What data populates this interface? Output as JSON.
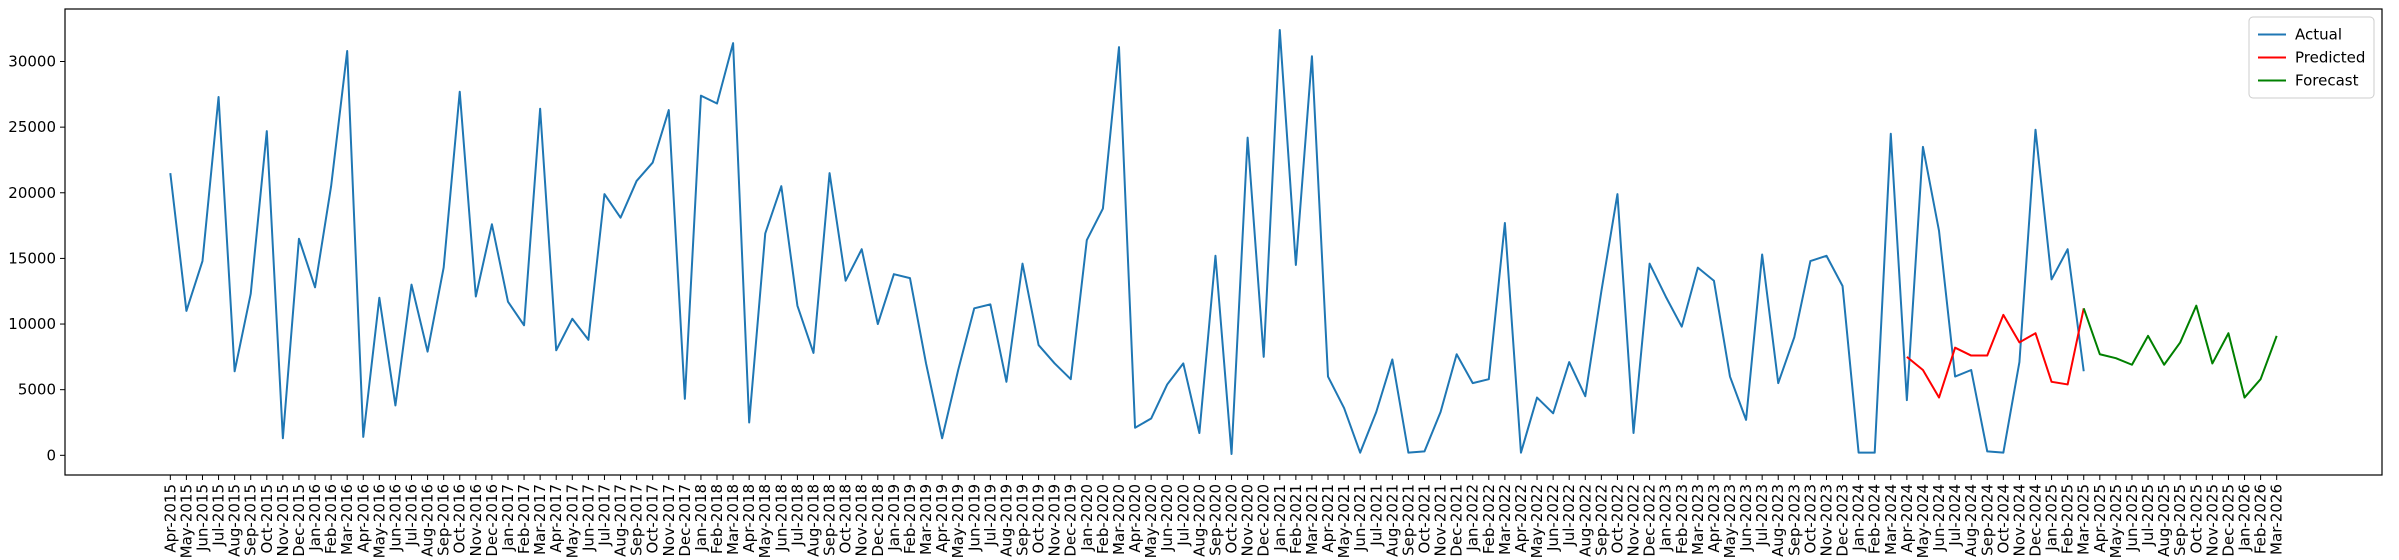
{
  "chart_data": {
    "type": "line",
    "categories": [
      "Apr-2015",
      "May-2015",
      "Jun-2015",
      "Jul-2015",
      "Aug-2015",
      "Sep-2015",
      "Oct-2015",
      "Nov-2015",
      "Dec-2015",
      "Jan-2016",
      "Feb-2016",
      "Mar-2016",
      "Apr-2016",
      "May-2016",
      "Jun-2016",
      "Jul-2016",
      "Aug-2016",
      "Sep-2016",
      "Oct-2016",
      "Nov-2016",
      "Dec-2016",
      "Jan-2017",
      "Feb-2017",
      "Mar-2017",
      "Apr-2017",
      "May-2017",
      "Jun-2017",
      "Jul-2017",
      "Aug-2017",
      "Sep-2017",
      "Oct-2017",
      "Nov-2017",
      "Dec-2017",
      "Jan-2018",
      "Feb-2018",
      "Mar-2018",
      "Apr-2018",
      "May-2018",
      "Jun-2018",
      "Jul-2018",
      "Aug-2018",
      "Sep-2018",
      "Oct-2018",
      "Nov-2018",
      "Dec-2018",
      "Jan-2019",
      "Feb-2019",
      "Mar-2019",
      "Apr-2019",
      "May-2019",
      "Jun-2019",
      "Jul-2019",
      "Aug-2019",
      "Sep-2019",
      "Oct-2019",
      "Nov-2019",
      "Dec-2019",
      "Jan-2020",
      "Feb-2020",
      "Mar-2020",
      "Apr-2020",
      "May-2020",
      "Jun-2020",
      "Jul-2020",
      "Aug-2020",
      "Sep-2020",
      "Oct-2020",
      "Nov-2020",
      "Dec-2020",
      "Jan-2021",
      "Feb-2021",
      "Mar-2021",
      "Apr-2021",
      "May-2021",
      "Jun-2021",
      "Jul-2021",
      "Aug-2021",
      "Sep-2021",
      "Oct-2021",
      "Nov-2021",
      "Dec-2021",
      "Jan-2022",
      "Feb-2022",
      "Mar-2022",
      "Apr-2022",
      "May-2022",
      "Jun-2022",
      "Jul-2022",
      "Aug-2022",
      "Sep-2022",
      "Oct-2022",
      "Nov-2022",
      "Dec-2022",
      "Jan-2023",
      "Feb-2023",
      "Mar-2023",
      "Apr-2023",
      "May-2023",
      "Jun-2023",
      "Jul-2023",
      "Aug-2023",
      "Sep-2023",
      "Oct-2023",
      "Nov-2023",
      "Dec-2023",
      "Jan-2024",
      "Feb-2024",
      "Mar-2024",
      "Apr-2024",
      "May-2024",
      "Jun-2024",
      "Jul-2024",
      "Aug-2024",
      "Sep-2024",
      "Oct-2024",
      "Nov-2024",
      "Dec-2024",
      "Jan-2025",
      "Feb-2025",
      "Mar-2025",
      "Apr-2025",
      "May-2025",
      "Jun-2025",
      "Jul-2025",
      "Aug-2025",
      "Sep-2025",
      "Oct-2025",
      "Nov-2025",
      "Dec-2025",
      "Jan-2026",
      "Feb-2026",
      "Mar-2026"
    ],
    "series": [
      {
        "name": "Actual",
        "color": "#1f77b4",
        "values": [
          21500,
          11000,
          14800,
          27300,
          6400,
          12300,
          24700,
          1300,
          16500,
          12800,
          20500,
          30800,
          1400,
          12000,
          3800,
          13000,
          7900,
          14300,
          27700,
          12100,
          17600,
          11700,
          9900,
          26400,
          8000,
          10400,
          8800,
          19900,
          18100,
          20900,
          22300,
          26300,
          4300,
          27400,
          26800,
          31400,
          2500,
          16900,
          20500,
          11400,
          7800,
          21500,
          13300,
          15700,
          10000,
          13800,
          13500,
          7000,
          1300,
          6500,
          11200,
          11500,
          5600,
          14600,
          8400,
          7000,
          5800,
          16400,
          18800,
          31100,
          2100,
          2800,
          5400,
          7000,
          1700,
          15200,
          100,
          24200,
          7500,
          32400,
          14500,
          30400,
          6000,
          3600,
          200,
          3300,
          7300,
          200,
          300,
          3300,
          7700,
          5500,
          5800,
          17700,
          200,
          4400,
          3200,
          7100,
          4500,
          12500,
          19900,
          1700,
          14600,
          12100,
          9800,
          14300,
          13300,
          6000,
          2700,
          15300,
          5500,
          9000,
          14800,
          15200,
          12900,
          200,
          200,
          24500,
          4200,
          23500,
          17100,
          6000,
          6500,
          300,
          200,
          7100,
          24800,
          13400,
          15700,
          6400,
          null,
          null,
          null,
          null,
          null,
          null,
          null,
          null,
          null,
          null,
          null,
          null
        ]
      },
      {
        "name": "Predicted",
        "color": "red",
        "values": [
          null,
          null,
          null,
          null,
          null,
          null,
          null,
          null,
          null,
          null,
          null,
          null,
          null,
          null,
          null,
          null,
          null,
          null,
          null,
          null,
          null,
          null,
          null,
          null,
          null,
          null,
          null,
          null,
          null,
          null,
          null,
          null,
          null,
          null,
          null,
          null,
          null,
          null,
          null,
          null,
          null,
          null,
          null,
          null,
          null,
          null,
          null,
          null,
          null,
          null,
          null,
          null,
          null,
          null,
          null,
          null,
          null,
          null,
          null,
          null,
          null,
          null,
          null,
          null,
          null,
          null,
          null,
          null,
          null,
          null,
          null,
          null,
          null,
          null,
          null,
          null,
          null,
          null,
          null,
          null,
          null,
          null,
          null,
          null,
          null,
          null,
          null,
          null,
          null,
          null,
          null,
          null,
          null,
          null,
          null,
          null,
          null,
          null,
          null,
          null,
          null,
          null,
          null,
          null,
          null,
          null,
          null,
          null,
          7500,
          6500,
          4400,
          8200,
          7600,
          7600,
          10700,
          8600,
          9300,
          5600,
          5400,
          11200,
          null,
          null,
          null,
          null,
          null,
          null,
          null,
          null,
          null,
          null,
          null,
          null
        ]
      },
      {
        "name": "Forecast",
        "color": "green",
        "values": [
          null,
          null,
          null,
          null,
          null,
          null,
          null,
          null,
          null,
          null,
          null,
          null,
          null,
          null,
          null,
          null,
          null,
          null,
          null,
          null,
          null,
          null,
          null,
          null,
          null,
          null,
          null,
          null,
          null,
          null,
          null,
          null,
          null,
          null,
          null,
          null,
          null,
          null,
          null,
          null,
          null,
          null,
          null,
          null,
          null,
          null,
          null,
          null,
          null,
          null,
          null,
          null,
          null,
          null,
          null,
          null,
          null,
          null,
          null,
          null,
          null,
          null,
          null,
          null,
          null,
          null,
          null,
          null,
          null,
          null,
          null,
          null,
          null,
          null,
          null,
          null,
          null,
          null,
          null,
          null,
          null,
          null,
          null,
          null,
          null,
          null,
          null,
          null,
          null,
          null,
          null,
          null,
          null,
          null,
          null,
          null,
          null,
          null,
          null,
          null,
          null,
          null,
          null,
          null,
          null,
          null,
          null,
          null,
          null,
          null,
          null,
          null,
          null,
          null,
          null,
          null,
          null,
          null,
          null,
          11200,
          7700,
          7400,
          6900,
          9100,
          6900,
          8600,
          11400,
          7000,
          9300,
          4400,
          5800,
          9100
        ]
      }
    ],
    "ylim": [
      -1500,
      34000
    ],
    "yticks": [
      0,
      5000,
      10000,
      15000,
      20000,
      25000,
      30000
    ],
    "grid": false,
    "legend": "upper right"
  }
}
